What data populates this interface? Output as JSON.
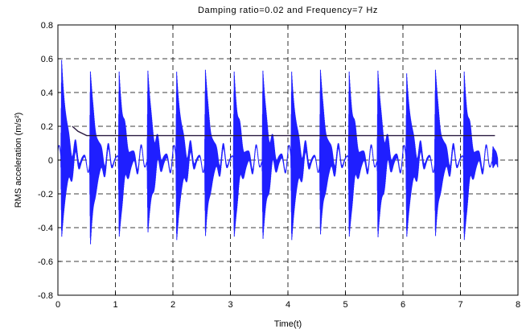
{
  "chart_data": {
    "type": "line",
    "title": "Damping ratio=0.02 and Frequency=7 Hz",
    "xlabel": "Time(t)",
    "ylabel": "RMS acceleration (m/s²)",
    "xlim": [
      0,
      8
    ],
    "ylim": [
      -0.8,
      0.8
    ],
    "xticks": [
      0,
      1,
      2,
      3,
      4,
      5,
      6,
      7,
      8
    ],
    "yticks": [
      -0.8,
      -0.6,
      -0.4,
      -0.2,
      0,
      0.2,
      0.4,
      0.6,
      0.8
    ],
    "xtick_labels": [
      "0",
      "1",
      "2",
      "3",
      "4",
      "5",
      "6",
      "7",
      "8"
    ],
    "ytick_labels": [
      "-0.8",
      "-0.6",
      "-0.4",
      "-0.2",
      "0",
      "0.2",
      "0.4",
      "0.6",
      "0.8"
    ],
    "grid": true,
    "grid_style": "dashed",
    "colors": {
      "signal": "#1f1fff",
      "rms": "#2a1a40",
      "axes": "#000000"
    },
    "series": [
      {
        "style": "oscillating acceleration signal",
        "t_end": 7.65,
        "burst_period": 0.5,
        "burst_start": 0.05,
        "burst_times": [
          0.05,
          0.55,
          1.05,
          1.55,
          2.05,
          2.55,
          3.05,
          3.55,
          4.05,
          4.55,
          5.05,
          5.55,
          6.05,
          6.55,
          7.05,
          7.55
        ],
        "burst_peak_max": [
          0.6,
          0.52,
          0.53,
          0.53,
          0.53,
          0.53,
          0.53,
          0.53,
          0.53,
          0.53,
          0.53,
          0.53,
          0.52,
          0.53,
          0.53,
          0.08
        ],
        "burst_peak_min": [
          -0.46,
          -0.52,
          -0.46,
          -0.44,
          -0.48,
          -0.47,
          -0.46,
          -0.48,
          -0.48,
          -0.46,
          -0.46,
          -0.47,
          -0.46,
          -0.47,
          -0.48,
          -0.05
        ],
        "inter_burst_amplitude": 0.07
      },
      {
        "style": "running RMS",
        "x": [
          0.25,
          0.35,
          0.5,
          1.0,
          2.0,
          3.0,
          4.0,
          5.0,
          6.0,
          7.0,
          7.6
        ],
        "y": [
          0.2,
          0.17,
          0.145,
          0.145,
          0.145,
          0.145,
          0.145,
          0.145,
          0.145,
          0.145,
          0.145
        ]
      }
    ]
  }
}
